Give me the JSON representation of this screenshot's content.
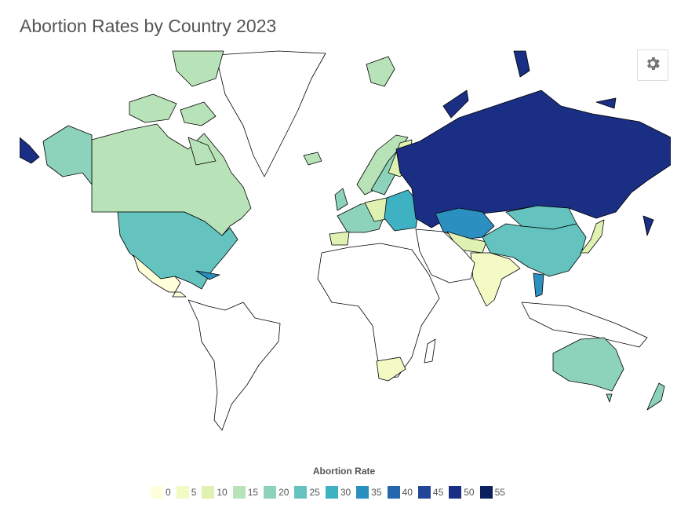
{
  "title": "Abortion Rates by Country 2023",
  "settings_icon": "gear-icon",
  "legend": {
    "title": "Abortion Rate",
    "items": [
      {
        "label": "0",
        "color": "#ffffd9"
      },
      {
        "label": "5",
        "color": "#f3fac4"
      },
      {
        "label": "10",
        "color": "#dff2b2"
      },
      {
        "label": "15",
        "color": "#b8e3b8"
      },
      {
        "label": "20",
        "color": "#8dd2bb"
      },
      {
        "label": "25",
        "color": "#64c3bf"
      },
      {
        "label": "30",
        "color": "#3eb2c3"
      },
      {
        "label": "35",
        "color": "#2b8fbf"
      },
      {
        "label": "40",
        "color": "#2567ae"
      },
      {
        "label": "45",
        "color": "#23469b"
      },
      {
        "label": "50",
        "color": "#1a2e84"
      },
      {
        "label": "55",
        "color": "#0c1f5e"
      }
    ]
  }
}
